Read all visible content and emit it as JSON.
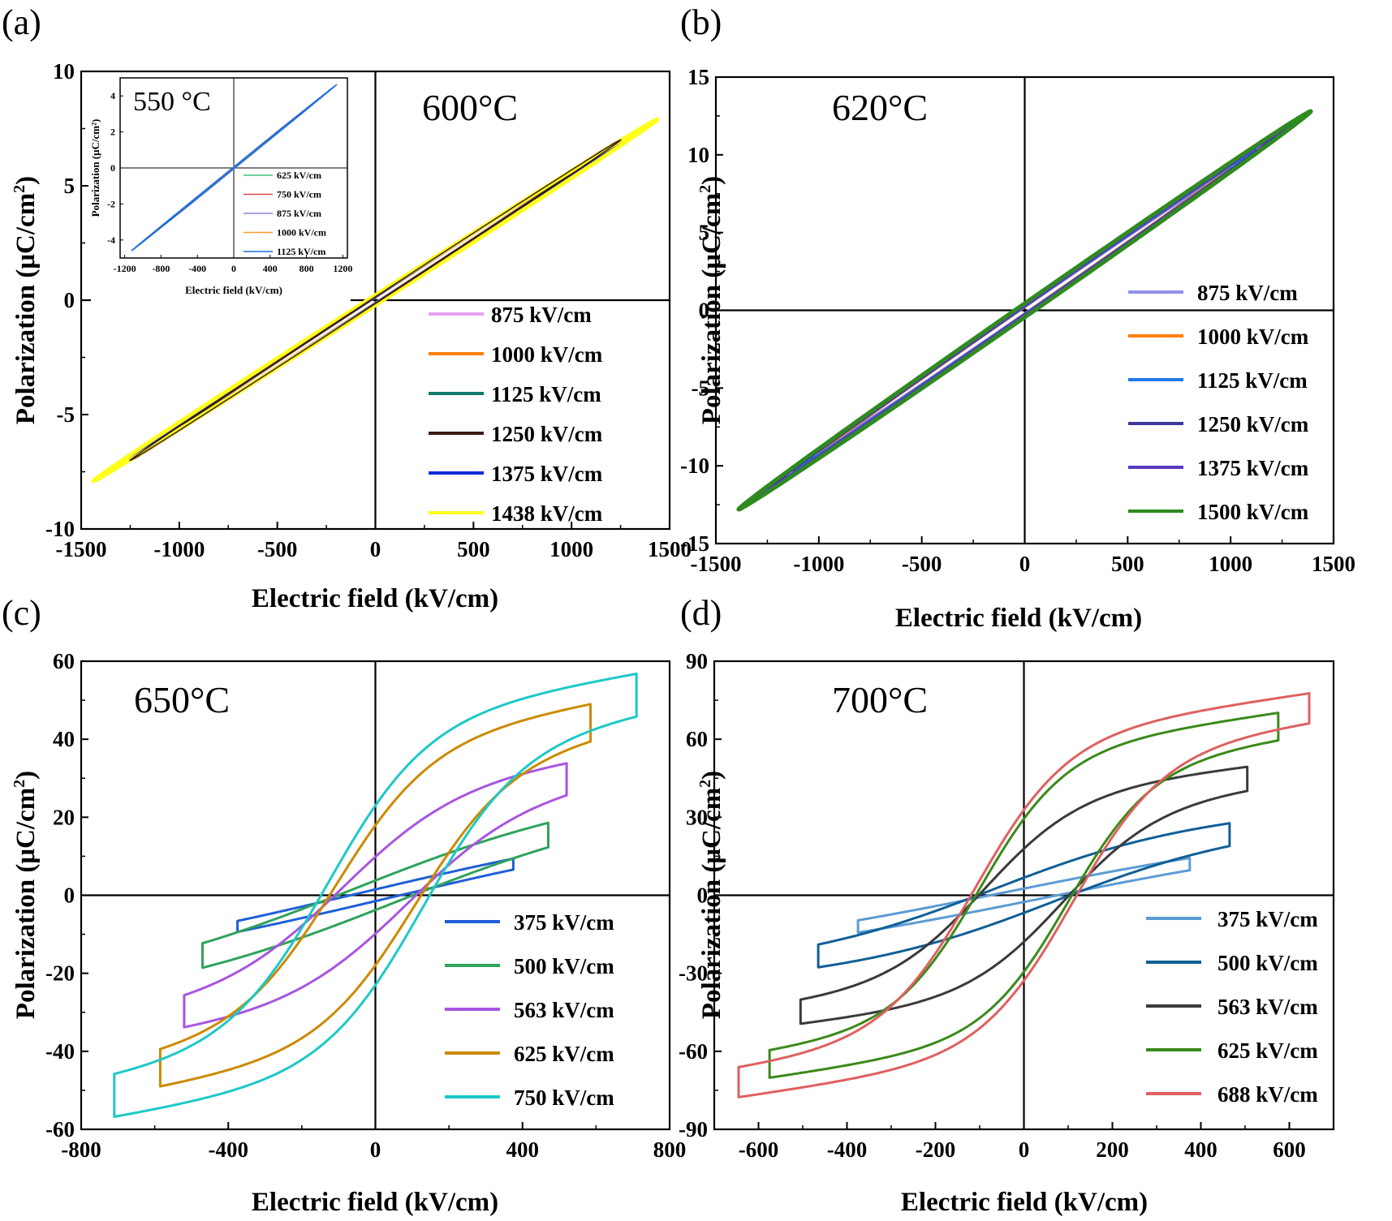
{
  "figure": {
    "width_label": ""
  },
  "chart_data": [
    {
      "id": "a",
      "type": "line",
      "panel_label": "(a)",
      "annotation": "600°C",
      "xlabel": "Electric field (kV/cm)",
      "ylabel": "Polarization (μC/cm",
      "ylabel_sup": "2",
      "ylabel_close": ")",
      "xlim": [
        -1500,
        1500
      ],
      "ylim": [
        -10,
        10
      ],
      "xticks": [
        -1500,
        -1000,
        -500,
        0,
        500,
        1000,
        1500
      ],
      "yticks": [
        -10,
        -5,
        0,
        5,
        10
      ],
      "series": [
        {
          "name": "875 kV/cm",
          "color": "#e8a0f0",
          "emax": 875,
          "pmax": 4.9,
          "hw": 0.12
        },
        {
          "name": "1000 kV/cm",
          "color": "#ff7f0e",
          "emax": 1000,
          "pmax": 5.6,
          "hw": 0.13
        },
        {
          "name": "1125 kV/cm",
          "color": "#0f7a6a",
          "emax": 1125,
          "pmax": 6.3,
          "hw": 0.14
        },
        {
          "name": "1250 kV/cm",
          "color": "#3b1a10",
          "emax": 1250,
          "pmax": 7.0,
          "hw": 0.15
        },
        {
          "name": "1375 kV/cm",
          "color": "#0a2ad6",
          "emax": 1375,
          "pmax": 7.6,
          "hw": 0.16
        },
        {
          "name": "1438 kV/cm",
          "color": "#ffff1a",
          "emax": 1438,
          "pmax": 7.9,
          "hw": 0.22
        }
      ],
      "inset": {
        "annotation": "550 °C",
        "xlabel": "Electric field (kV/cm)",
        "ylabel": "Polarization (μC/cm²)",
        "xlim": [
          -1250,
          1250
        ],
        "ylim": [
          -5,
          5
        ],
        "xticks": [
          -1200,
          -800,
          -400,
          0,
          400,
          800,
          1200
        ],
        "yticks": [
          -4,
          -2,
          0,
          2,
          4
        ],
        "series": [
          {
            "name": "625 kV/cm",
            "color": "#3cc47c",
            "emax": 625,
            "pmax": 2.6
          },
          {
            "name": "750 kV/cm",
            "color": "#e04848",
            "emax": 750,
            "pmax": 3.1
          },
          {
            "name": "875 kV/cm",
            "color": "#8a8ad8",
            "emax": 875,
            "pmax": 3.6
          },
          {
            "name": "1000 kV/cm",
            "color": "#ff9a2a",
            "emax": 1000,
            "pmax": 4.1
          },
          {
            "name": "1125 kV/cm",
            "color": "#1f6fe0",
            "emax": 1125,
            "pmax": 4.6
          }
        ]
      }
    },
    {
      "id": "b",
      "type": "line",
      "panel_label": "(b)",
      "annotation": "620°C",
      "xlabel": "Electric field (kV/cm)",
      "ylabel": "Polarization (μC/cm",
      "ylabel_sup": "2",
      "ylabel_close": ")",
      "xlim": [
        -1500,
        1500
      ],
      "ylim": [
        -15,
        15
      ],
      "xticks": [
        -1500,
        -1000,
        -500,
        0,
        500,
        1000,
        1500
      ],
      "yticks": [
        -15,
        -10,
        -5,
        0,
        5,
        10,
        15
      ],
      "series": [
        {
          "name": "875 kV/cm",
          "color": "#8f8fe8",
          "emax": 875,
          "pmax": 8.0,
          "hw": 0.2
        },
        {
          "name": "1000 kV/cm",
          "color": "#ff7f0e",
          "emax": 1000,
          "pmax": 9.2,
          "hw": 0.22
        },
        {
          "name": "1125 kV/cm",
          "color": "#1f78e8",
          "emax": 1125,
          "pmax": 10.3,
          "hw": 0.24
        },
        {
          "name": "1250 kV/cm",
          "color": "#3a3a9a",
          "emax": 1250,
          "pmax": 11.5,
          "hw": 0.26
        },
        {
          "name": "1375 kV/cm",
          "color": "#5a3ac0",
          "emax": 1375,
          "pmax": 12.6,
          "hw": 0.28
        },
        {
          "name": "1500 kV/cm",
          "color": "#2e8b1e",
          "emax": 1390,
          "pmax": 12.8,
          "hw": 0.45
        }
      ]
    },
    {
      "id": "c",
      "type": "line",
      "panel_label": "(c)",
      "annotation": "650°C",
      "xlabel": "Electric field (kV/cm)",
      "ylabel": "Polarization (μC/cm",
      "ylabel_sup": "2",
      "ylabel_close": ")",
      "xlim": [
        -800,
        800
      ],
      "ylim": [
        -60,
        60
      ],
      "xticks": [
        -800,
        -400,
        0,
        400,
        800
      ],
      "yticks": [
        -60,
        -40,
        -20,
        0,
        20,
        40,
        60
      ],
      "series": [
        {
          "name": "375 kV/cm",
          "color": "#1f5fd6",
          "emax": 375,
          "pmax": 8,
          "pr": 0.8,
          "ec": 40,
          "k": 0.4
        },
        {
          "name": "500 kV/cm",
          "color": "#2ea35a",
          "emax": 470,
          "pmax": 15.5,
          "pr": 2.0,
          "ec": 60,
          "k": 0.7
        },
        {
          "name": "563 kV/cm",
          "color": "#a855e0",
          "emax": 520,
          "pmax": 30,
          "pr": 3.0,
          "ec": 90,
          "k": 1.6
        },
        {
          "name": "625 kV/cm",
          "color": "#cc8a00",
          "emax": 585,
          "pmax": 44.5,
          "pr": 4.0,
          "ec": 110,
          "k": 2.2
        },
        {
          "name": "750 kV/cm",
          "color": "#1ec8c8",
          "emax": 710,
          "pmax": 51.5,
          "pr": 5.0,
          "ec": 130,
          "k": 2.6
        }
      ]
    },
    {
      "id": "d",
      "type": "line",
      "panel_label": "(d)",
      "annotation": "700°C",
      "xlabel": "Electric field (kV/cm)",
      "ylabel": "Polarization (μC/cm",
      "ylabel_sup": "2",
      "ylabel_close": ")",
      "xlim": [
        -700,
        700
      ],
      "ylim": [
        -90,
        90
      ],
      "xticks": [
        -600,
        -400,
        -200,
        0,
        200,
        400,
        600
      ],
      "yticks": [
        -90,
        -60,
        -30,
        0,
        30,
        60,
        90
      ],
      "series": [
        {
          "name": "375 kV/cm",
          "color": "#5b9bd5",
          "emax": 375,
          "pmax": 12,
          "pr": 1.5,
          "ec": 40,
          "k": 0.5
        },
        {
          "name": "500 kV/cm",
          "color": "#0f5f96",
          "emax": 465,
          "pmax": 23.5,
          "pr": 3.0,
          "ec": 70,
          "k": 1.1
        },
        {
          "name": "563 kV/cm",
          "color": "#3a3a3a",
          "emax": 505,
          "pmax": 45,
          "pr": 4.0,
          "ec": 90,
          "k": 2.3
        },
        {
          "name": "625 kV/cm",
          "color": "#3a8a1a",
          "emax": 575,
          "pmax": 65,
          "pr": 5.0,
          "ec": 100,
          "k": 3.0
        },
        {
          "name": "688 kV/cm",
          "color": "#e06060",
          "emax": 645,
          "pmax": 72,
          "pr": 5.5,
          "ec": 110,
          "k": 3.1
        }
      ]
    }
  ]
}
